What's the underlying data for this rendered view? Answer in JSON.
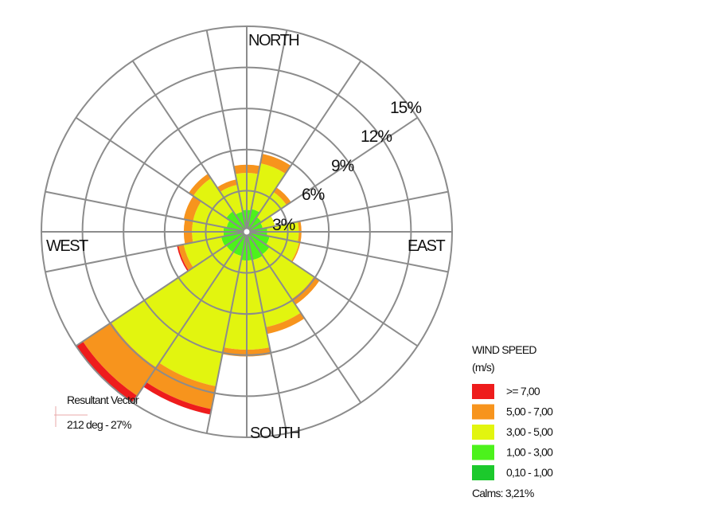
{
  "chart_data": {
    "type": "wind_rose",
    "directions": [
      "NORTH",
      "EAST",
      "SOUTH",
      "WEST"
    ],
    "ring_labels": [
      "3%",
      "6%",
      "9%",
      "12%",
      "15%"
    ],
    "ring_values": [
      3,
      6,
      9,
      12,
      15
    ],
    "sector_count": 16,
    "legend": {
      "title": "WIND SPEED",
      "unit": "(m/s)",
      "classes": [
        {
          "label": ">= 7,00",
          "color": "#ee1c1c"
        },
        {
          "label": "5,00 - 7,00",
          "color": "#f7941d"
        },
        {
          "label": "3,00 - 5,00",
          "color": "#e2f50f"
        },
        {
          "label": "1,00 - 3,00",
          "color": "#4cf21c"
        },
        {
          "label": "0,10 - 1,00",
          "color": "#1cc92c"
        }
      ]
    },
    "calms": "Calms: 3,21%",
    "resultant_vector": {
      "title": "Resultant Vector",
      "value": "212 deg - 27%"
    },
    "sectors": [
      {
        "direction": 0,
        "cumulative": [
          0.2,
          1.6,
          4.3,
          4.9,
          4.9
        ]
      },
      {
        "direction": 22.5,
        "cumulative": [
          0.2,
          1.7,
          5.1,
          5.8,
          5.8
        ]
      },
      {
        "direction": 45,
        "cumulative": [
          0.2,
          1.3,
          3.5,
          3.9,
          3.9
        ]
      },
      {
        "direction": 67.5,
        "cumulative": [
          0.2,
          1.2,
          2.1,
          2.1,
          2.1
        ]
      },
      {
        "direction": 90,
        "cumulative": [
          0.2,
          1.5,
          3.8,
          4.0,
          4.0
        ]
      },
      {
        "direction": 112.5,
        "cumulative": [
          0.2,
          1.7,
          3.9,
          4.0,
          4.0
        ]
      },
      {
        "direction": 135,
        "cumulative": [
          0.2,
          2.0,
          5.9,
          6.4,
          6.4
        ]
      },
      {
        "direction": 157.5,
        "cumulative": [
          0.2,
          2.1,
          7.1,
          7.6,
          7.6
        ]
      },
      {
        "direction": 180,
        "cumulative": [
          0.2,
          2.1,
          8.6,
          9.1,
          9.1
        ]
      },
      {
        "direction": 202.5,
        "cumulative": [
          0.2,
          1.8,
          11.5,
          13.2,
          13.6
        ]
      },
      {
        "direction": 225,
        "cumulative": [
          0.2,
          1.8,
          11.9,
          14.4,
          15.0
        ]
      },
      {
        "direction": 247.5,
        "cumulative": [
          0.2,
          1.9,
          4.7,
          5.1,
          5.2
        ]
      },
      {
        "direction": 270,
        "cumulative": [
          0.2,
          1.7,
          4.0,
          4.6,
          4.6
        ]
      },
      {
        "direction": 292.5,
        "cumulative": [
          0.2,
          1.5,
          4.0,
          4.7,
          4.7
        ]
      },
      {
        "direction": 315,
        "cumulative": [
          0.2,
          1.8,
          4.7,
          5.1,
          5.1
        ]
      },
      {
        "direction": 337.5,
        "cumulative": [
          0.2,
          1.5,
          3.5,
          3.9,
          3.9
        ]
      }
    ]
  }
}
